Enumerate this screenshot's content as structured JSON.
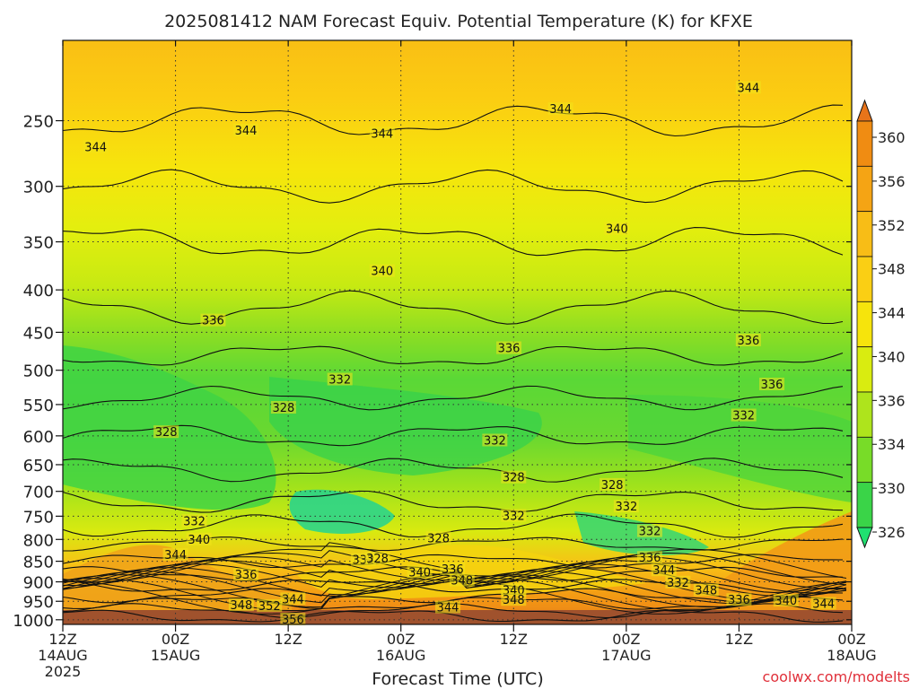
{
  "chart_data": {
    "type": "heatmap",
    "title": "2025081412 NAM Forecast Equiv. Potential Temperature (K) for KFXE",
    "xlabel": "Forecast Time (UTC)",
    "ylabel": "",
    "watermark": "coolwx.com/modelts",
    "x_ticks": [
      {
        "hours": 0,
        "hour_label": "12Z",
        "date_label": "14AUG",
        "year_label": "2025"
      },
      {
        "hours": 12,
        "hour_label": "00Z",
        "date_label": "15AUG",
        "year_label": ""
      },
      {
        "hours": 24,
        "hour_label": "12Z",
        "date_label": "",
        "year_label": ""
      },
      {
        "hours": 36,
        "hour_label": "00Z",
        "date_label": "16AUG",
        "year_label": ""
      },
      {
        "hours": 48,
        "hour_label": "12Z",
        "date_label": "",
        "year_label": ""
      },
      {
        "hours": 60,
        "hour_label": "00Z",
        "date_label": "17AUG",
        "year_label": ""
      },
      {
        "hours": 72,
        "hour_label": "12Z",
        "date_label": "",
        "year_label": ""
      },
      {
        "hours": 84,
        "hour_label": "00Z",
        "date_label": "18AUG",
        "year_label": ""
      }
    ],
    "xlim": [
      0,
      84
    ],
    "y_ticks": [
      "250",
      "300",
      "350",
      "400",
      "450",
      "500",
      "550",
      "600",
      "650",
      "700",
      "750",
      "800",
      "850",
      "900",
      "950",
      "1000"
    ],
    "y_tick_values": [
      250,
      300,
      350,
      400,
      450,
      500,
      550,
      600,
      650,
      700,
      750,
      800,
      850,
      900,
      950,
      1000
    ],
    "ylim": [
      200,
      1013
    ],
    "y_scale": "log",
    "y_inverted": true,
    "grid": true,
    "colorbar": {
      "labels": [
        "360",
        "356",
        "352",
        "348",
        "344",
        "340",
        "336",
        "334",
        "330",
        "326"
      ],
      "levels": [
        360,
        356,
        352,
        348,
        344,
        340,
        336,
        334,
        330,
        326
      ],
      "colors": [
        "#e8741a",
        "#f08c12",
        "#f5a414",
        "#f8bd16",
        "#facf14",
        "#f6e40c",
        "#d9ec10",
        "#aee41c",
        "#78dc28",
        "#3ad448",
        "#20e070"
      ]
    },
    "contour_labels": [
      {
        "text": "344",
        "hours": 3.5,
        "pressure": 270
      },
      {
        "text": "344",
        "hours": 19.5,
        "pressure": 258
      },
      {
        "text": "344",
        "hours": 34,
        "pressure": 260
      },
      {
        "text": "344",
        "hours": 53,
        "pressure": 243
      },
      {
        "text": "344",
        "hours": 73,
        "pressure": 229
      },
      {
        "text": "340",
        "hours": 34,
        "pressure": 381
      },
      {
        "text": "340",
        "hours": 59,
        "pressure": 339
      },
      {
        "text": "336",
        "hours": 16,
        "pressure": 437
      },
      {
        "text": "336",
        "hours": 47.5,
        "pressure": 472
      },
      {
        "text": "336",
        "hours": 73,
        "pressure": 462
      },
      {
        "text": "336",
        "hours": 75.5,
        "pressure": 522
      },
      {
        "text": "332",
        "hours": 29.5,
        "pressure": 515
      },
      {
        "text": "332",
        "hours": 72.5,
        "pressure": 569
      },
      {
        "text": "332",
        "hours": 46,
        "pressure": 610
      },
      {
        "text": "332",
        "hours": 60,
        "pressure": 733
      },
      {
        "text": "332",
        "hours": 14,
        "pressure": 763
      },
      {
        "text": "332",
        "hours": 48,
        "pressure": 752
      },
      {
        "text": "332",
        "hours": 62.5,
        "pressure": 785
      },
      {
        "text": "332",
        "hours": 32,
        "pressure": 850
      },
      {
        "text": "332",
        "hours": 65.5,
        "pressure": 905
      },
      {
        "text": "328",
        "hours": 23.5,
        "pressure": 557
      },
      {
        "text": "328",
        "hours": 11,
        "pressure": 596
      },
      {
        "text": "328",
        "hours": 48,
        "pressure": 676
      },
      {
        "text": "328",
        "hours": 58.5,
        "pressure": 690
      },
      {
        "text": "328",
        "hours": 40,
        "pressure": 800
      },
      {
        "text": "328",
        "hours": 33.5,
        "pressure": 847
      },
      {
        "text": "340",
        "hours": 14.5,
        "pressure": 803
      },
      {
        "text": "340",
        "hours": 38,
        "pressure": 880
      },
      {
        "text": "340",
        "hours": 48,
        "pressure": 925
      },
      {
        "text": "340",
        "hours": 77,
        "pressure": 952
      },
      {
        "text": "344",
        "hours": 12,
        "pressure": 838
      },
      {
        "text": "344",
        "hours": 24.5,
        "pressure": 948
      },
      {
        "text": "344",
        "hours": 41,
        "pressure": 970
      },
      {
        "text": "344",
        "hours": 64,
        "pressure": 875
      },
      {
        "text": "344",
        "hours": 81,
        "pressure": 960
      },
      {
        "text": "336",
        "hours": 19.5,
        "pressure": 886
      },
      {
        "text": "336",
        "hours": 41.5,
        "pressure": 872
      },
      {
        "text": "336",
        "hours": 62.5,
        "pressure": 845
      },
      {
        "text": "336",
        "hours": 72,
        "pressure": 950
      },
      {
        "text": "348",
        "hours": 42.5,
        "pressure": 900
      },
      {
        "text": "348",
        "hours": 48,
        "pressure": 950
      },
      {
        "text": "348",
        "hours": 68.5,
        "pressure": 925
      },
      {
        "text": "348",
        "hours": 19,
        "pressure": 964
      },
      {
        "text": "352",
        "hours": 22,
        "pressure": 966
      },
      {
        "text": "356",
        "hours": 24.5,
        "pressure": 1003
      }
    ]
  }
}
